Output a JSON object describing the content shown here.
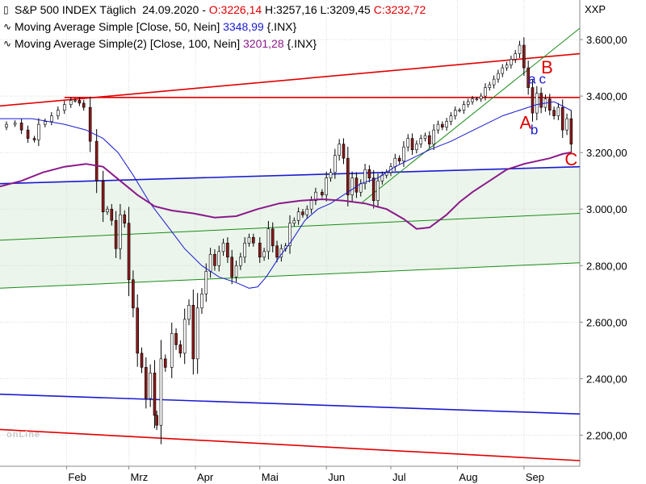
{
  "legend": {
    "title": "S&P 500 INDEX Täglich",
    "date": "24.09.2020",
    "open": "O:3226,14",
    "high": "H:3257,16",
    "low": "L:3209,45",
    "close": "C:3232,72",
    "ma1_label": "Moving Average Simple [Close, 50, Nein]",
    "ma1_value": "3348,99",
    "ma1_symbol": "{.INX}",
    "ma2_label": "Moving Average Simple(2) [Close, 100, Nein]",
    "ma2_value": "3201,28",
    "ma2_symbol": "{.INX}",
    "ma1_icon": "wave-icon",
    "ma2_icon": "wave-icon",
    "price_icon": "candle-icon"
  },
  "watermark": "onLine",
  "chart_data": {
    "type": "candlestick",
    "y_axis_title": "XXP",
    "ylim": [
      2090,
      3740
    ],
    "yticks": [
      {
        "value": 3600,
        "label": "3.600,00"
      },
      {
        "value": 3400,
        "label": "3.400,00"
      },
      {
        "value": 3200,
        "label": "3.200,00"
      },
      {
        "value": 3000,
        "label": "3.000,00"
      },
      {
        "value": 2800,
        "label": "2.800,00"
      },
      {
        "value": 2600,
        "label": "2.600,00"
      },
      {
        "value": 2400,
        "label": "2.400,00"
      },
      {
        "value": 2200,
        "label": "2.200,00"
      }
    ],
    "x_range_days": [
      0,
      270
    ],
    "xticks": [
      {
        "day": 31,
        "label": "Feb"
      },
      {
        "day": 60,
        "label": "Mrz"
      },
      {
        "day": 91,
        "label": "Apr"
      },
      {
        "day": 121,
        "label": "Mai"
      },
      {
        "day": 152,
        "label": "Jun"
      },
      {
        "day": 182,
        "label": "Jul"
      },
      {
        "day": 213,
        "label": "Aug"
      },
      {
        "day": 244,
        "label": "Sep"
      }
    ],
    "grid": true,
    "close_series": [
      [
        0,
        3290
      ],
      [
        3,
        3300
      ],
      [
        7,
        3305
      ],
      [
        10,
        3280
      ],
      [
        13,
        3250
      ],
      [
        16,
        3245
      ],
      [
        18,
        3300
      ],
      [
        21,
        3310
      ],
      [
        24,
        3330
      ],
      [
        27,
        3350
      ],
      [
        30,
        3370
      ],
      [
        33,
        3385
      ],
      [
        35,
        3385
      ],
      [
        37,
        3375
      ],
      [
        39,
        3360
      ],
      [
        42,
        3240
      ],
      [
        45,
        3100
      ],
      [
        48,
        2990
      ],
      [
        50,
        3000
      ],
      [
        52,
        2960
      ],
      [
        54,
        2860
      ],
      [
        56,
        2980
      ],
      [
        58,
        2950
      ],
      [
        60,
        2750
      ],
      [
        62,
        2650
      ],
      [
        64,
        2490
      ],
      [
        66,
        2440
      ],
      [
        68,
        2330
      ],
      [
        70,
        2420
      ],
      [
        72,
        2270
      ],
      [
        73,
        2235
      ],
      [
        75,
        2470
      ],
      [
        77,
        2440
      ],
      [
        80,
        2560
      ],
      [
        82,
        2520
      ],
      [
        84,
        2490
      ],
      [
        86,
        2610
      ],
      [
        88,
        2660
      ],
      [
        90,
        2470
      ],
      [
        92,
        2650
      ],
      [
        94,
        2700
      ],
      [
        96,
        2780
      ],
      [
        98,
        2840
      ],
      [
        100,
        2800
      ],
      [
        102,
        2850
      ],
      [
        104,
        2880
      ],
      [
        106,
        2830
      ],
      [
        108,
        2760
      ],
      [
        110,
        2800
      ],
      [
        112,
        2830
      ],
      [
        114,
        2880
      ],
      [
        116,
        2900
      ],
      [
        118,
        2880
      ],
      [
        121,
        2830
      ],
      [
        123,
        2850
      ],
      [
        125,
        2930
      ],
      [
        127,
        2870
      ],
      [
        129,
        2830
      ],
      [
        131,
        2860
      ],
      [
        133,
        2870
      ],
      [
        135,
        2950
      ],
      [
        137,
        2960
      ],
      [
        139,
        2990
      ],
      [
        141,
        2980
      ],
      [
        143,
        3000
      ],
      [
        145,
        3030
      ],
      [
        147,
        3060
      ],
      [
        150,
        3050
      ],
      [
        152,
        3110
      ],
      [
        154,
        3130
      ],
      [
        156,
        3190
      ],
      [
        158,
        3230
      ],
      [
        160,
        3180
      ],
      [
        162,
        3050
      ],
      [
        164,
        3110
      ],
      [
        166,
        3060
      ],
      [
        168,
        3090
      ],
      [
        170,
        3140
      ],
      [
        172,
        3110
      ],
      [
        174,
        3030
      ],
      [
        176,
        3100
      ],
      [
        178,
        3120
      ],
      [
        180,
        3130
      ],
      [
        182,
        3150
      ],
      [
        184,
        3180
      ],
      [
        186,
        3170
      ],
      [
        188,
        3220
      ],
      [
        190,
        3250
      ],
      [
        192,
        3210
      ],
      [
        194,
        3230
      ],
      [
        196,
        3250
      ],
      [
        198,
        3260
      ],
      [
        200,
        3230
      ],
      [
        202,
        3280
      ],
      [
        204,
        3300
      ],
      [
        206,
        3290
      ],
      [
        208,
        3310
      ],
      [
        210,
        3330
      ],
      [
        212,
        3350
      ],
      [
        214,
        3350
      ],
      [
        216,
        3370
      ],
      [
        218,
        3380
      ],
      [
        220,
        3390
      ],
      [
        222,
        3390
      ],
      [
        224,
        3400
      ],
      [
        226,
        3430
      ],
      [
        228,
        3440
      ],
      [
        230,
        3460
      ],
      [
        232,
        3480
      ],
      [
        234,
        3500
      ],
      [
        236,
        3510
      ],
      [
        238,
        3530
      ],
      [
        240,
        3550
      ],
      [
        242,
        3580
      ],
      [
        244,
        3500
      ],
      [
        246,
        3430
      ],
      [
        248,
        3340
      ],
      [
        250,
        3410
      ],
      [
        252,
        3360
      ],
      [
        254,
        3390
      ],
      [
        256,
        3350
      ],
      [
        258,
        3330
      ],
      [
        260,
        3360
      ],
      [
        262,
        3280
      ],
      [
        264,
        3320
      ],
      [
        266,
        3230
      ]
    ],
    "series": [
      {
        "name": "Moving Average Simple [Close, 50, Nein]",
        "value": 3348.99,
        "color": "#1a1ad0",
        "values": [
          [
            0,
            3320
          ],
          [
            15,
            3320
          ],
          [
            30,
            3300
          ],
          [
            40,
            3280
          ],
          [
            48,
            3250
          ],
          [
            55,
            3200
          ],
          [
            62,
            3120
          ],
          [
            70,
            3020
          ],
          [
            78,
            2940
          ],
          [
            86,
            2860
          ],
          [
            94,
            2800
          ],
          [
            102,
            2760
          ],
          [
            110,
            2740
          ],
          [
            116,
            2720
          ],
          [
            120,
            2725
          ],
          [
            124,
            2760
          ],
          [
            130,
            2830
          ],
          [
            136,
            2890
          ],
          [
            142,
            2960
          ],
          [
            148,
            3000
          ],
          [
            154,
            3020
          ],
          [
            160,
            3050
          ],
          [
            168,
            3090
          ],
          [
            176,
            3110
          ],
          [
            184,
            3150
          ],
          [
            192,
            3180
          ],
          [
            200,
            3210
          ],
          [
            210,
            3240
          ],
          [
            218,
            3270
          ],
          [
            226,
            3300
          ],
          [
            234,
            3330
          ],
          [
            242,
            3350
          ],
          [
            250,
            3370
          ],
          [
            258,
            3380
          ],
          [
            266,
            3349
          ]
        ]
      },
      {
        "name": "Moving Average Simple(2) [Close, 100, Nein]",
        "value": 3201.28,
        "color": "#8a1a8a",
        "values": [
          [
            0,
            3080
          ],
          [
            10,
            3100
          ],
          [
            20,
            3130
          ],
          [
            30,
            3150
          ],
          [
            40,
            3160
          ],
          [
            48,
            3150
          ],
          [
            56,
            3100
          ],
          [
            64,
            3050
          ],
          [
            72,
            3010
          ],
          [
            80,
            2995
          ],
          [
            90,
            2985
          ],
          [
            100,
            2970
          ],
          [
            110,
            2975
          ],
          [
            120,
            3000
          ],
          [
            130,
            3020
          ],
          [
            140,
            3030
          ],
          [
            150,
            3035
          ],
          [
            160,
            3030
          ],
          [
            170,
            3020
          ],
          [
            180,
            3000
          ],
          [
            188,
            2965
          ],
          [
            194,
            2930
          ],
          [
            200,
            2935
          ],
          [
            208,
            2980
          ],
          [
            214,
            3025
          ],
          [
            220,
            3060
          ],
          [
            228,
            3100
          ],
          [
            236,
            3140
          ],
          [
            244,
            3160
          ],
          [
            250,
            3170
          ],
          [
            256,
            3180
          ],
          [
            262,
            3195
          ],
          [
            266,
            3201
          ]
        ]
      }
    ],
    "trendlines": [
      {
        "name": "upper-red-channel",
        "color": "#e00000",
        "points": [
          [
            0,
            3365
          ],
          [
            270,
            3550
          ]
        ]
      },
      {
        "name": "lower-red-channel",
        "color": "#e00000",
        "points": [
          [
            0,
            2220
          ],
          [
            270,
            2110
          ]
        ]
      },
      {
        "name": "horizontal-red-resistance",
        "color": "#e00000",
        "points": [
          [
            30,
            3395
          ],
          [
            270,
            3395
          ]
        ]
      },
      {
        "name": "upper-blue-line",
        "color": "#1a1ad0",
        "points": [
          [
            0,
            3090
          ],
          [
            270,
            3150
          ]
        ]
      },
      {
        "name": "lower-blue-line",
        "color": "#1a1ad0",
        "points": [
          [
            0,
            2345
          ],
          [
            270,
            2275
          ]
        ]
      },
      {
        "name": "upper-green-line",
        "color": "#1a8a1a",
        "points": [
          [
            0,
            2890
          ],
          [
            270,
            2985
          ]
        ]
      },
      {
        "name": "lower-green-line",
        "color": "#1a8a1a",
        "points": [
          [
            0,
            2720
          ],
          [
            270,
            2810
          ]
        ]
      },
      {
        "name": "green-uptrend",
        "color": "#1a8a1a",
        "points": [
          [
            168,
            3020
          ],
          [
            270,
            3640
          ]
        ]
      }
    ],
    "annotations": [
      {
        "text": "A",
        "day": 242,
        "value": 3285,
        "color": "#e00000"
      },
      {
        "text": "b",
        "day": 247,
        "value": 3265,
        "color": "#1a1ad0"
      },
      {
        "text": "a",
        "day": 246,
        "value": 3445,
        "color": "#1a1ad0"
      },
      {
        "text": "c",
        "day": 251,
        "value": 3445,
        "color": "#1a1ad0"
      },
      {
        "text": "B",
        "day": 252,
        "value": 3480,
        "color": "#e00000"
      },
      {
        "text": "C",
        "day": 263,
        "value": 3155,
        "color": "#e00000"
      }
    ]
  }
}
